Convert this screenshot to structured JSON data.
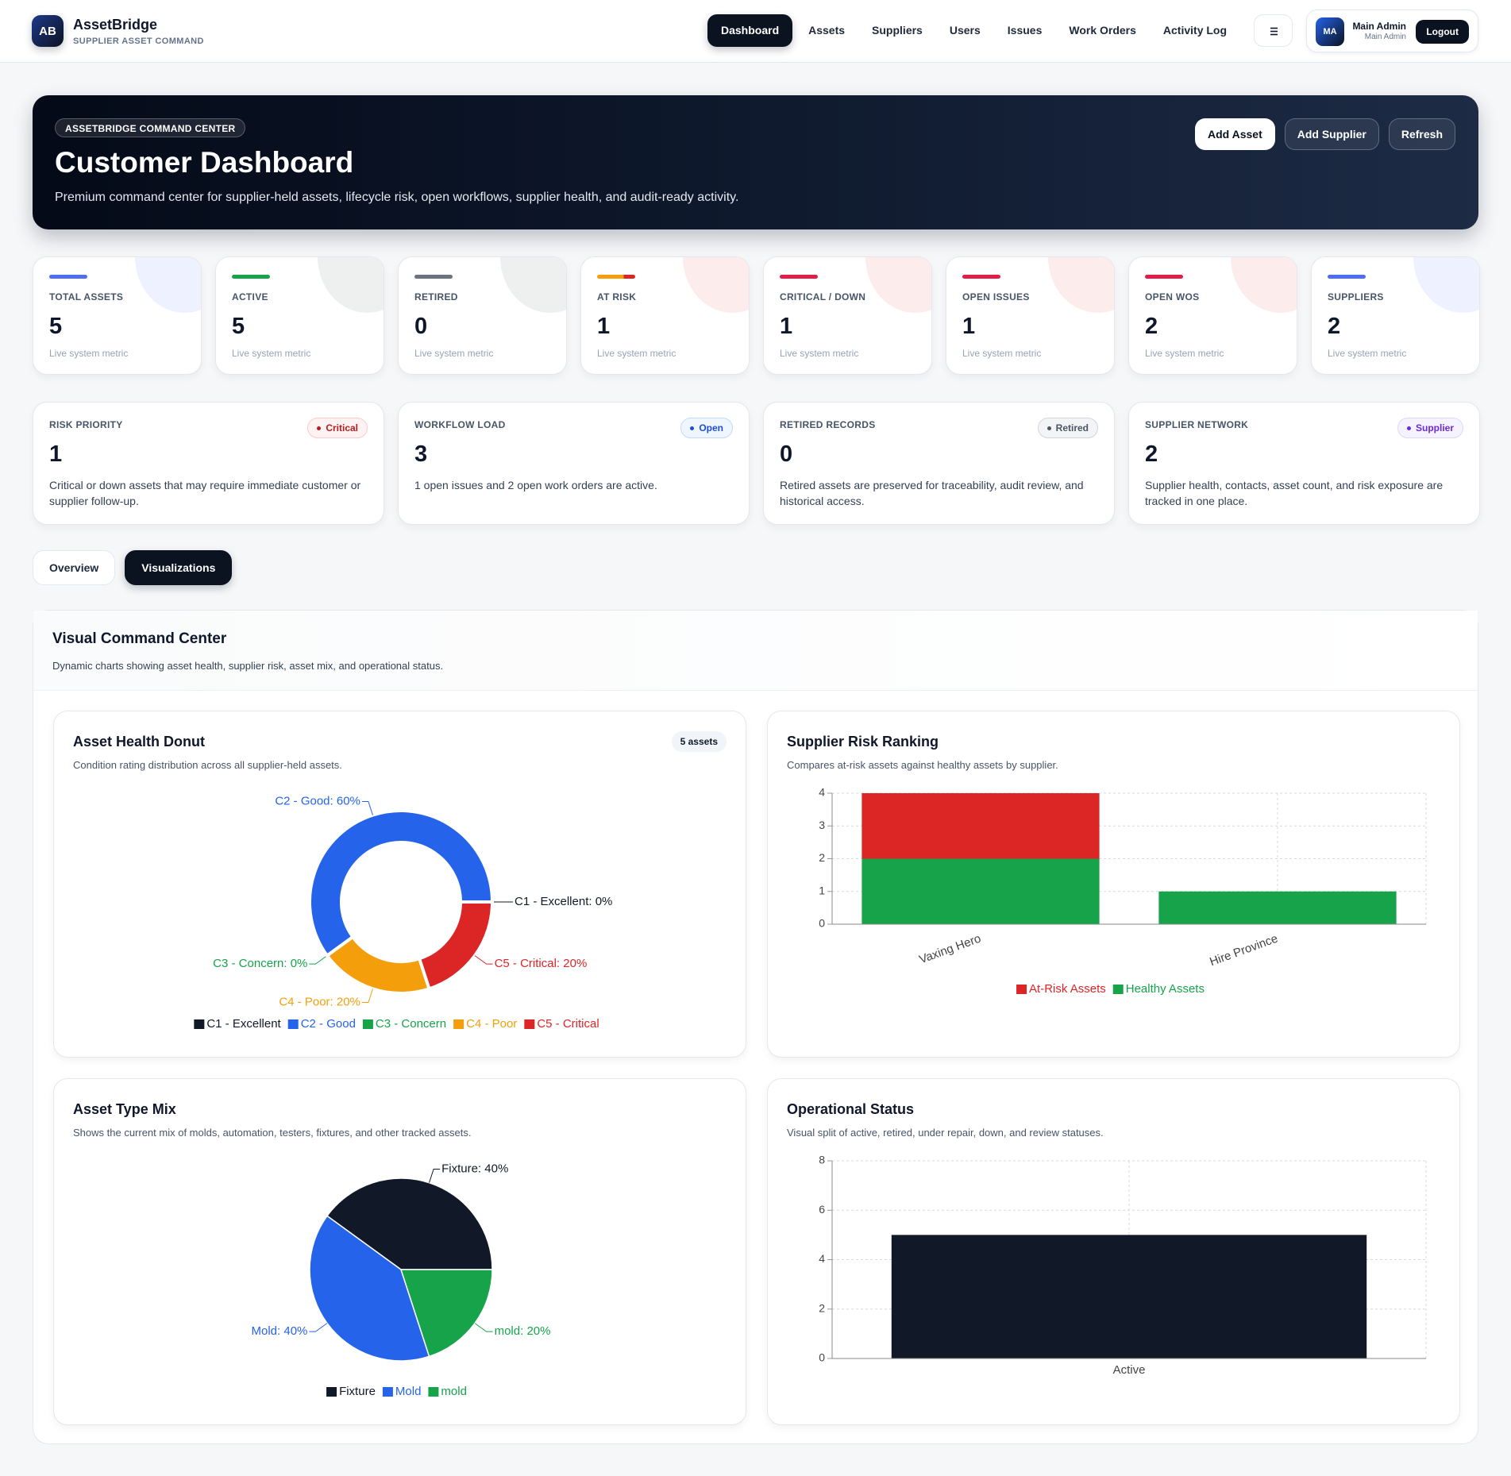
{
  "header": {
    "logo": "AB",
    "brand": "AssetBridge",
    "tagline": "SUPPLIER ASSET COMMAND",
    "nav": [
      "Dashboard",
      "Assets",
      "Suppliers",
      "Users",
      "Issues",
      "Work Orders",
      "Activity Log"
    ],
    "user": {
      "initials": "MA",
      "name": "Main Admin",
      "role": "Main Admin"
    },
    "logout": "Logout"
  },
  "hero": {
    "badge": "ASSETBRIDGE COMMAND CENTER",
    "title": "Customer Dashboard",
    "subtitle": "Premium command center for supplier-held assets, lifecycle risk, open workflows, supplier health, and audit-ready activity.",
    "actions": [
      "Add Asset",
      "Add Supplier",
      "Refresh"
    ]
  },
  "metrics": [
    {
      "label": "TOTAL ASSETS",
      "value": 5,
      "note": "Live system metric"
    },
    {
      "label": "ACTIVE",
      "value": 5,
      "note": "Live system metric"
    },
    {
      "label": "RETIRED",
      "value": 0,
      "note": "Live system metric"
    },
    {
      "label": "AT RISK",
      "value": 1,
      "note": "Live system metric"
    },
    {
      "label": "CRITICAL / DOWN",
      "value": 1,
      "note": "Live system metric"
    },
    {
      "label": "OPEN ISSUES",
      "value": 1,
      "note": "Live system metric"
    },
    {
      "label": "OPEN WOS",
      "value": 2,
      "note": "Live system metric"
    },
    {
      "label": "SUPPLIERS",
      "value": 2,
      "note": "Live system metric"
    }
  ],
  "summaries": [
    {
      "label": "RISK PRIORITY",
      "badge": "Critical",
      "value": 1,
      "text": "Critical or down assets that may require immediate customer or supplier follow-up."
    },
    {
      "label": "WORKFLOW LOAD",
      "badge": "Open",
      "value": 3,
      "text": "1 open issues and 2 open work orders are active."
    },
    {
      "label": "RETIRED RECORDS",
      "badge": "Retired",
      "value": 0,
      "text": "Retired assets are preserved for traceability, audit review, and historical access."
    },
    {
      "label": "SUPPLIER NETWORK",
      "badge": "Supplier",
      "value": 2,
      "text": "Supplier health, contacts, asset count, and risk exposure are tracked in one place."
    }
  ],
  "tabs": [
    "Overview",
    "Visualizations"
  ],
  "panel": {
    "title": "Visual Command Center",
    "subtitle": "Dynamic charts showing asset health, supplier risk, asset mix, and operational status."
  },
  "chart_data": [
    {
      "type": "doughnut",
      "title": "Asset Health Donut",
      "subtitle": "Condition rating distribution across all supplier-held assets.",
      "badge": "5 assets",
      "categories": [
        "C1 - Excellent",
        "C2 - Good",
        "C3 - Concern",
        "C4 - Poor",
        "C5 - Critical"
      ],
      "values": [
        0,
        60,
        0,
        20,
        20
      ],
      "value_labels": [
        "C1 - Excellent: 0%",
        "C2 - Good: 60%",
        "C3 - Concern: 0%",
        "C4 - Poor: 20%",
        "C5 - Critical: 20%"
      ],
      "colors": [
        "#111827",
        "#2563eb",
        "#16a34a",
        "#f59e0b",
        "#dc2626"
      ]
    },
    {
      "type": "bar",
      "stacked": true,
      "title": "Supplier Risk Ranking",
      "subtitle": "Compares at-risk assets against healthy assets by supplier.",
      "categories": [
        "Vaxing Hero",
        "Hire Province"
      ],
      "series": [
        {
          "name": "At-Risk Assets",
          "color": "#dc2626",
          "values": [
            2,
            0
          ]
        },
        {
          "name": "Healthy Assets",
          "color": "#16a34a",
          "values": [
            2,
            1
          ]
        }
      ],
      "ylim": [
        0,
        4
      ],
      "yticks": [
        0,
        1,
        2,
        3,
        4
      ],
      "grid": true
    },
    {
      "type": "pie",
      "title": "Asset Type Mix",
      "subtitle": "Shows the current mix of molds, automation, testers, fixtures, and other tracked assets.",
      "categories": [
        "Fixture",
        "Mold",
        "mold"
      ],
      "values": [
        40,
        40,
        20
      ],
      "value_labels": [
        "Fixture: 40%",
        "Mold: 40%",
        "mold: 20%"
      ],
      "colors": [
        "#111827",
        "#2563eb",
        "#16a34a"
      ]
    },
    {
      "type": "bar",
      "title": "Operational Status",
      "subtitle": "Visual split of active, retired, under repair, down, and review statuses.",
      "categories": [
        "Active"
      ],
      "values": [
        5
      ],
      "color": "#111827",
      "ylim": [
        0,
        8
      ],
      "yticks": [
        0,
        2,
        4,
        6,
        8
      ],
      "grid": true
    }
  ]
}
